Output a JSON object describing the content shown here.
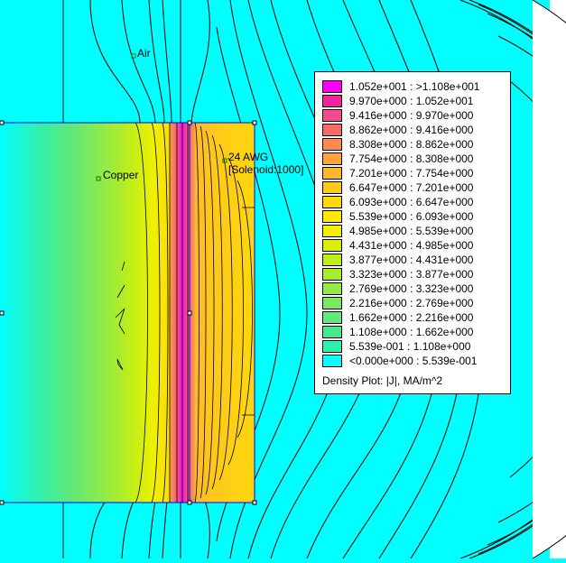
{
  "plot": {
    "regions": {
      "air": "Air",
      "copper": "Copper",
      "coil_line1": "24 AWG",
      "coil_line2": "[Solenoid:1000]"
    }
  },
  "legend": {
    "title": "Density Plot: |J|, MA/m^2",
    "entries": [
      {
        "label": "1.052e+001 : >1.108e+001",
        "color": "#ff00ff"
      },
      {
        "label": "9.970e+000 : 1.052e+001",
        "color": "#f2249a"
      },
      {
        "label": "9.416e+000 : 9.970e+000",
        "color": "#f24a8c"
      },
      {
        "label": "8.862e+000 : 9.416e+000",
        "color": "#f86a6a"
      },
      {
        "label": "8.308e+000 : 8.862e+000",
        "color": "#fb8a4c"
      },
      {
        "label": "7.754e+000 : 8.308e+000",
        "color": "#fca33c"
      },
      {
        "label": "7.201e+000 : 7.754e+000",
        "color": "#ffb82e"
      },
      {
        "label": "6.647e+000 : 7.201e+000",
        "color": "#ffc81c"
      },
      {
        "label": "6.093e+000 : 6.647e+000",
        "color": "#ffd80c"
      },
      {
        "label": "5.539e+000 : 6.093e+000",
        "color": "#fde800"
      },
      {
        "label": "4.985e+000 : 5.539e+000",
        "color": "#f0f000"
      },
      {
        "label": "4.431e+000 : 4.985e+000",
        "color": "#d8f000"
      },
      {
        "label": "3.877e+000 : 4.431e+000",
        "color": "#c0ee18"
      },
      {
        "label": "3.323e+000 : 3.877e+000",
        "color": "#a8ec30"
      },
      {
        "label": "2.769e+000 : 3.323e+000",
        "color": "#90ea48"
      },
      {
        "label": "2.216e+000 : 2.769e+000",
        "color": "#78e860"
      },
      {
        "label": "1.662e+000 : 2.216e+000",
        "color": "#60e878"
      },
      {
        "label": "1.108e+000 : 1.662e+000",
        "color": "#48e890"
      },
      {
        "label": "5.539e-001 : 1.108e+000",
        "color": "#30f0b0"
      },
      {
        "label": "<0.000e+000 : 5.539e-001",
        "color": "#00ffff"
      }
    ]
  }
}
